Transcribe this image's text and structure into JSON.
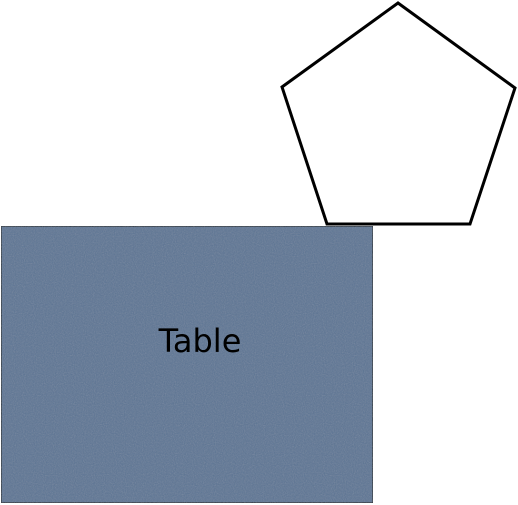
{
  "diagram": {
    "shapes": [
      {
        "id": "pentagon",
        "kind": "pentagon",
        "fill": "#ffffff",
        "stroke": "#000000"
      },
      {
        "id": "table",
        "kind": "rectangle",
        "label": "Table",
        "fill": "#5b7594",
        "stroke": "#1f2a36",
        "text_color": "#000000"
      }
    ]
  }
}
